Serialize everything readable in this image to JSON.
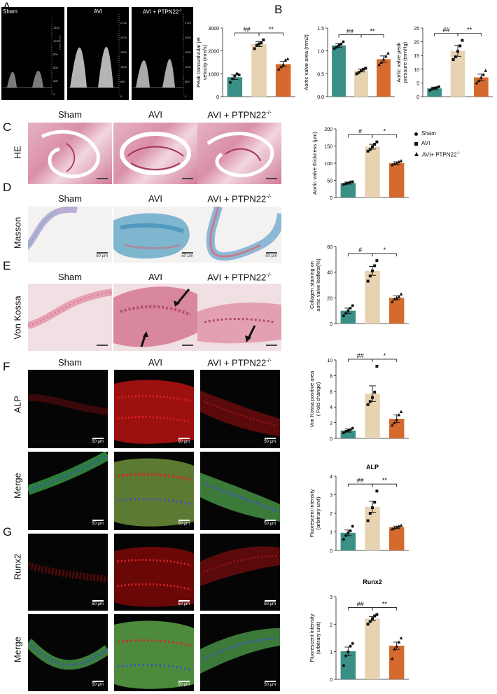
{
  "panels": {
    "A": "A",
    "B": "B",
    "C": "C",
    "D": "D",
    "E": "E",
    "F": "F",
    "G": "G"
  },
  "groups": {
    "sham": "Sham",
    "avi": "AVI",
    "ko": "AVI + PTPN22"
  },
  "superscript": "-/-",
  "rows": {
    "he": "HE",
    "masson": "Masson",
    "vonkossa": "Von Kossa",
    "alp": "ALP",
    "merge1": "Merge",
    "runx2": "Runx2",
    "merge2": "Merge"
  },
  "scale": {
    "small": "50 µm",
    "fl": "50 µm"
  },
  "echo_ticks": {
    "sham": [
      "1453",
      "1200",
      "800",
      "600",
      "400",
      "0"
    ],
    "avi": [
      "2722",
      "2400",
      "1800",
      "1200",
      "600",
      "0"
    ],
    "ko": [
      "2722",
      "2400",
      "1800",
      "1200",
      "600",
      "0"
    ],
    "unit": "velocity mm/sec"
  },
  "legend": {
    "items": [
      "Sham",
      "AVI",
      "AVI+ PTPN22"
    ],
    "sup": "-/-"
  },
  "colors": {
    "sham": "#3a8f86",
    "avi": "#e7d3b1",
    "ko": "#d66a2e"
  },
  "chart_data": [
    {
      "id": "b1",
      "type": "bar",
      "categories": [
        "Sham",
        "AVI",
        "AVI + PTPN22-/-"
      ],
      "values": [
        850,
        2300,
        1420
      ],
      "errors": [
        100,
        110,
        120
      ],
      "points": [
        [
          620,
          780,
          900,
          1000,
          950
        ],
        [
          2100,
          2250,
          2300,
          2350,
          2480
        ],
        [
          1200,
          1300,
          1400,
          1600,
          1650
        ]
      ],
      "ylabel": "Peak transvalvular jet velocity (mm/s)",
      "ylim": [
        0,
        3000
      ],
      "yticks": [
        0,
        1000,
        2000,
        3000
      ],
      "sig": [
        {
          "from": 0,
          "to": 1,
          "text": "##"
        },
        {
          "from": 1,
          "to": 2,
          "text": "**"
        }
      ]
    },
    {
      "id": "b2",
      "type": "bar",
      "categories": [
        "Sham",
        "AVI",
        "AVI + PTPN22-/-"
      ],
      "values": [
        1.12,
        0.57,
        0.82
      ],
      "errors": [
        0.04,
        0.03,
        0.07
      ],
      "points": [
        [
          1.05,
          1.08,
          1.12,
          1.15,
          1.2
        ],
        [
          0.5,
          0.53,
          0.57,
          0.6,
          0.62
        ],
        [
          0.7,
          0.75,
          0.82,
          0.88,
          0.95
        ]
      ],
      "ylabel": "Aortic valve area (mm2)",
      "ylim": [
        0,
        1.5
      ],
      "yticks": [
        0.0,
        0.5,
        1.0,
        1.5
      ],
      "sig": [
        {
          "from": 0,
          "to": 1,
          "text": "##"
        },
        {
          "from": 1,
          "to": 2,
          "text": "**"
        }
      ]
    },
    {
      "id": "b3",
      "type": "bar",
      "categories": [
        "Sham",
        "AVI",
        "AVI + PTPN22-/-"
      ],
      "values": [
        3.0,
        16.7,
        7.0
      ],
      "errors": [
        0.5,
        2.0,
        1.2
      ],
      "points": [
        [
          2.3,
          2.8,
          3.0,
          3.3,
          3.6
        ],
        [
          13.5,
          14.5,
          16.5,
          18.5,
          20.5
        ],
        [
          5.0,
          5.8,
          7.0,
          8.0,
          9.5
        ]
      ],
      "ylabel": "Aortic valve peak pressure (mmHg)",
      "ylim": [
        0,
        25
      ],
      "yticks": [
        0,
        5,
        10,
        15,
        20,
        25
      ],
      "sig": [
        {
          "from": 0,
          "to": 1,
          "text": "##"
        },
        {
          "from": 1,
          "to": 2,
          "text": "**"
        }
      ]
    },
    {
      "id": "c",
      "type": "bar",
      "categories": [
        "Sham",
        "AVI",
        "AVI + PTPN22-/-"
      ],
      "values": [
        42,
        148,
        100
      ],
      "errors": [
        3,
        7,
        4
      ],
      "points": [
        [
          38,
          40,
          42,
          45,
          46
        ],
        [
          135,
          140,
          148,
          155,
          162
        ],
        [
          95,
          98,
          100,
          104,
          107
        ]
      ],
      "ylabel": "Aortic valve thickness (µm)",
      "ylim": [
        0,
        200
      ],
      "yticks": [
        0,
        50,
        100,
        150,
        200
      ],
      "sig": [
        {
          "from": 0,
          "to": 1,
          "text": "#"
        },
        {
          "from": 1,
          "to": 2,
          "text": "*"
        }
      ]
    },
    {
      "id": "d",
      "type": "bar",
      "categories": [
        "Sham",
        "AVI",
        "AVI + PTPN22-/-"
      ],
      "values": [
        10,
        41,
        20
      ],
      "errors": [
        2,
        3.5,
        1.5
      ],
      "points": [
        [
          6,
          8,
          10,
          12,
          14
        ],
        [
          33,
          37,
          41,
          45,
          49
        ],
        [
          17,
          19,
          20,
          21,
          23
        ]
      ],
      "ylabel": "Collagen staining on aortic valve leaflets(%)",
      "ylim": [
        0,
        60
      ],
      "yticks": [
        0,
        20,
        40,
        60
      ],
      "sig": [
        {
          "from": 0,
          "to": 1,
          "text": "#"
        },
        {
          "from": 1,
          "to": 2,
          "text": "*"
        }
      ]
    },
    {
      "id": "e",
      "type": "bar",
      "categories": [
        "Sham",
        "AVI",
        "AVI + PTPN22-/-"
      ],
      "values": [
        1.0,
        5.7,
        2.5
      ],
      "errors": [
        0.2,
        1.0,
        0.5
      ],
      "points": [
        [
          0.7,
          0.9,
          1.0,
          1.1,
          1.3
        ],
        [
          4.3,
          4.7,
          5.2,
          5.9,
          9.2
        ],
        [
          1.7,
          2.0,
          2.4,
          3.0,
          3.4
        ]
      ],
      "ylabel": "Von Kossa positive area ( Fold change)",
      "ylim": [
        0,
        10
      ],
      "yticks": [
        0,
        2,
        4,
        6,
        8,
        10
      ],
      "sig": [
        {
          "from": 0,
          "to": 1,
          "text": "##"
        },
        {
          "from": 1,
          "to": 2,
          "text": "*"
        }
      ]
    },
    {
      "id": "f",
      "type": "bar",
      "title": "ALP",
      "categories": [
        "Sham",
        "AVI",
        "AVI + PTPN22-/-"
      ],
      "values": [
        0.95,
        2.35,
        1.25
      ],
      "errors": [
        0.15,
        0.3,
        0.06
      ],
      "points": [
        [
          0.6,
          0.8,
          0.95,
          1.05,
          1.3
        ],
        [
          1.6,
          2.0,
          2.3,
          2.6,
          3.2
        ],
        [
          1.15,
          1.2,
          1.25,
          1.3,
          1.35
        ]
      ],
      "ylabel": "Fluorescent intensity (arbitrary unit)",
      "ylim": [
        0,
        4
      ],
      "yticks": [
        0,
        1,
        2,
        3,
        4
      ],
      "sig": [
        {
          "from": 0,
          "to": 1,
          "text": "##"
        },
        {
          "from": 1,
          "to": 2,
          "text": "**"
        }
      ]
    },
    {
      "id": "g",
      "type": "bar",
      "title": "Runx2",
      "categories": [
        "Sham",
        "AVI",
        "AVI + PTPN22-/-"
      ],
      "values": [
        1.02,
        2.2,
        1.22
      ],
      "errors": [
        0.15,
        0.08,
        0.13
      ],
      "points": [
        [
          0.5,
          0.85,
          1.0,
          1.2,
          1.3
        ],
        [
          2.0,
          2.1,
          2.2,
          2.3,
          2.35
        ],
        [
          0.75,
          1.1,
          1.2,
          1.35,
          1.5
        ]
      ],
      "ylabel": "Fluorescent intensity (arbitrary unit)",
      "ylim": [
        0,
        3
      ],
      "yticks": [
        0,
        1,
        2,
        3
      ],
      "sig": [
        {
          "from": 0,
          "to": 1,
          "text": "##"
        },
        {
          "from": 1,
          "to": 2,
          "text": "**"
        }
      ]
    }
  ]
}
